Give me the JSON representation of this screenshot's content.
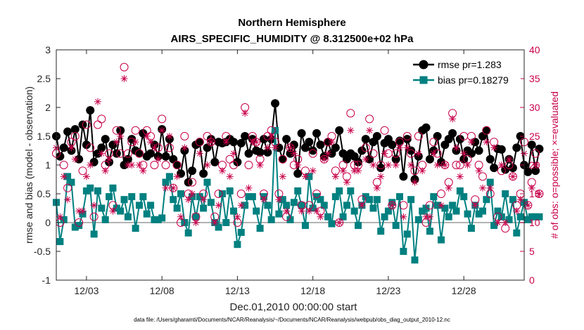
{
  "chart_data": {
    "type": "line",
    "title": "Northern Hemisphere",
    "subtitle": "AIRS_SPECIFIC_HUMIDITY @ 8.312500e+02 hPa",
    "xlabel": "Dec.01,2010 00:00:00 start",
    "ylabel": "rmse and bias (model - observation)",
    "ylabel_right": "# of obs: o=possible; ×=evaluated",
    "footnote": "data file: /Users/gharamti/Documents/NCAR/Reanalysis/~/Documents/NCAR/Reanalysis/webpub/obs_diag_output_2010-12.nc",
    "xlim": [
      1,
      32
    ],
    "ylim": [
      -1,
      3
    ],
    "ylim_right": [
      0,
      40
    ],
    "x_ticks": [
      {
        "x": 3,
        "label": "12/03"
      },
      {
        "x": 8,
        "label": "12/08"
      },
      {
        "x": 13,
        "label": "12/13"
      },
      {
        "x": 18,
        "label": "12/18"
      },
      {
        "x": 23,
        "label": "12/23"
      },
      {
        "x": 28,
        "label": "12/28"
      }
    ],
    "y_ticks": [
      "-1",
      "-0.5",
      "0",
      "0.5",
      "1",
      "1.5",
      "2",
      "2.5",
      "3"
    ],
    "y_ticks_right": [
      "0",
      "5",
      "10",
      "15",
      "20",
      "25",
      "30",
      "35",
      "40"
    ],
    "grid": false,
    "legend_position": "top-right",
    "series": [
      {
        "name": "rmse",
        "legend": "rmse pr=1.283",
        "color": "#000000",
        "marker": "circle",
        "axis": "left",
        "x_start": 1.0,
        "x_step": 0.25,
        "values": [
          1.5,
          1.15,
          1.3,
          1.58,
          1.25,
          1.62,
          1.1,
          1.7,
          1.35,
          1.95,
          1.05,
          1.2,
          1.3,
          1.45,
          1.05,
          1.35,
          1.2,
          1.6,
          1.0,
          1.1,
          1.45,
          1.25,
          1.2,
          1.55,
          1.15,
          1.2,
          1.35,
          1.15,
          1.62,
          1.15,
          1.45,
          1.1,
          1.0,
          0.85,
          1.25,
          0.7,
          0.9,
          1.35,
          1.4,
          0.85,
          1.3,
          1.45,
          1.05,
          1.4,
          1.38,
          1.4,
          1.45,
          1.4,
          1.05,
          1.38,
          1.5,
          1.2,
          1.45,
          1.25,
          1.22,
          1.45,
          1.22,
          1.45,
          2.07,
          1.3,
          1.1,
          1.45,
          1.2,
          1.35,
          0.85,
          1.55,
          1.3,
          1.4,
          1.25,
          1.55,
          1.35,
          1.15,
          1.4,
          1.2,
          1.3,
          1.6,
          1.2,
          1.1,
          1.2,
          1.15,
          1.05,
          1.25,
          1.45,
          1.1,
          1.4,
          1.5,
          0.95,
          1.38,
          1.45,
          1.35,
          1.1,
          1.42,
          0.8,
          1.45,
          1.25,
          0.75,
          1.15,
          1.6,
          1.65,
          1.1,
          1.25,
          1.5,
          1.05,
          1.35,
          1.45,
          1.55,
          1.25,
          1.45,
          1.1,
          1.25,
          1.2,
          1.4,
          1.25,
          1.5,
          1.6,
          1.1,
          0.95,
          1.28,
          1.27,
          0.92,
          1.1,
          0.95,
          1.3,
          1.5,
          1.0,
          0.88,
          1.35,
          0.9,
          1.28
        ],
        "highlight_below_count_color": "#7a7a7a"
      },
      {
        "name": "bias",
        "legend": "bias pr=0.18279",
        "color": "#008080",
        "marker": "square",
        "axis": "left",
        "x_start": 1.0,
        "x_step": 0.25,
        "values": [
          0.35,
          -0.33,
          0.05,
          0.8,
          0.7,
          -0.08,
          -0.05,
          0.15,
          0.55,
          0.6,
          -0.2,
          0.55,
          0.25,
          0.05,
          0.45,
          0.6,
          0.25,
          0.2,
          0.4,
          0.1,
          0.45,
          -0.1,
          0.3,
          0.45,
          0.15,
          0.3,
          0.05,
          0.05,
          0.08,
          0.7,
          0.8,
          0.4,
          0.25,
          0.5,
          0.0,
          -0.18,
          0.45,
          0.1,
          0.45,
          0.25,
          0.7,
          0.35,
          0.0,
          -0.08,
          0.5,
          0.0,
          0.55,
          0.2,
          -0.38,
          -0.17,
          0.3,
          0.45,
          0.45,
          0.2,
          -0.1,
          0.45,
          0.3,
          0.05,
          1.6,
          0.15,
          0.4,
          0.3,
          0.05,
          0.35,
          0.55,
          0.3,
          -0.05,
          0.8,
          0.25,
          0.45,
          0.4,
          0.3,
          0.1,
          -0.02,
          0.45,
          0.55,
          0.1,
          0.3,
          0.55,
          0.2,
          -0.05,
          0.3,
          0.45,
          0.4,
          0.25,
          0.4,
          -0.15,
          0.1,
          0.2,
          0.35,
          -0.05,
          0.45,
          -0.5,
          -0.2,
          0.4,
          -0.65,
          0.05,
          0.2,
          0.25,
          -0.15,
          0.45,
          0.3,
          -0.3,
          0.25,
          0.1,
          0.3,
          0.2,
          0.55,
          0.45,
          0.15,
          -0.1,
          0.3,
          0.15,
          0.2,
          0.4,
          0.7,
          -0.05,
          0.2,
          0.1,
          0.5,
          0.05,
          0.4,
          -0.18,
          0.1,
          0.35,
          0.05,
          0.1,
          0.1,
          0.1
        ]
      },
      {
        "name": "obs possible",
        "color": "#c8004a",
        "marker": "open-circle",
        "axis": "right",
        "x_start": 1.0,
        "x_step": 0.25,
        "values": [
          22,
          10,
          20,
          16,
          24,
          25,
          10,
          19,
          27,
          23,
          11,
          27,
          28,
          20,
          22,
          13,
          26,
          22,
          37,
          22,
          24,
          26,
          22,
          20,
          26,
          25,
          20,
          23,
          28,
          20,
          23,
          16,
          20,
          10,
          25,
          15,
          17,
          11,
          24,
          15,
          25,
          24,
          11,
          15,
          20,
          25,
          21,
          20,
          10,
          15,
          30,
          20,
          25,
          24,
          21,
          15,
          25,
          26,
          24,
          15,
          21,
          11,
          23,
          20,
          21,
          13,
          19,
          13,
          22,
          15,
          12,
          21,
          24,
          25,
          19,
          10,
          20,
          18,
          29,
          20,
          20,
          14,
          23,
          28,
          22,
          17,
          20,
          26,
          22,
          13,
          22,
          24,
          13,
          25,
          22,
          19,
          25,
          20,
          10,
          13,
          24,
          22,
          15,
          20,
          17,
          29,
          20,
          20,
          25,
          21,
          25,
          14,
          20,
          18,
          26,
          15,
          24,
          11,
          19,
          9,
          20,
          18,
          13,
          15,
          24,
          13,
          17,
          22,
          15
        ]
      },
      {
        "name": "obs evaluated",
        "color": "#c8004a",
        "marker": "asterisk",
        "axis": "right",
        "x_start": 1.0,
        "x_step": 0.25,
        "values": [
          23,
          11,
          18,
          14,
          23,
          21,
          12,
          12,
          18,
          20,
          13,
          31,
          22,
          19,
          21,
          12,
          24,
          25,
          35,
          20,
          20,
          24,
          20,
          19,
          25,
          24,
          23,
          21,
          26,
          16,
          25,
          16,
          18,
          11,
          23,
          14,
          15,
          10,
          22,
          14,
          20,
          24,
          10,
          13,
          19,
          24,
          18,
          22,
          11,
          13,
          29,
          16,
          24,
          24,
          20,
          14,
          23,
          25,
          23,
          14,
          18,
          12,
          23,
          22,
          20,
          12,
          18,
          12,
          19,
          12,
          11,
          21,
          22,
          24,
          18,
          10,
          19,
          17,
          26,
          19,
          19,
          13,
          21,
          26,
          20,
          16,
          18,
          22,
          20,
          13,
          20,
          23,
          11,
          23,
          20,
          17,
          22,
          19,
          11,
          11,
          22,
          20,
          13,
          20,
          16,
          28,
          23,
          18,
          22,
          20,
          24,
          13,
          19,
          16,
          24,
          16,
          23,
          10,
          20,
          10,
          21,
          18,
          12,
          14,
          22,
          13,
          16,
          20,
          15
        ]
      }
    ]
  }
}
